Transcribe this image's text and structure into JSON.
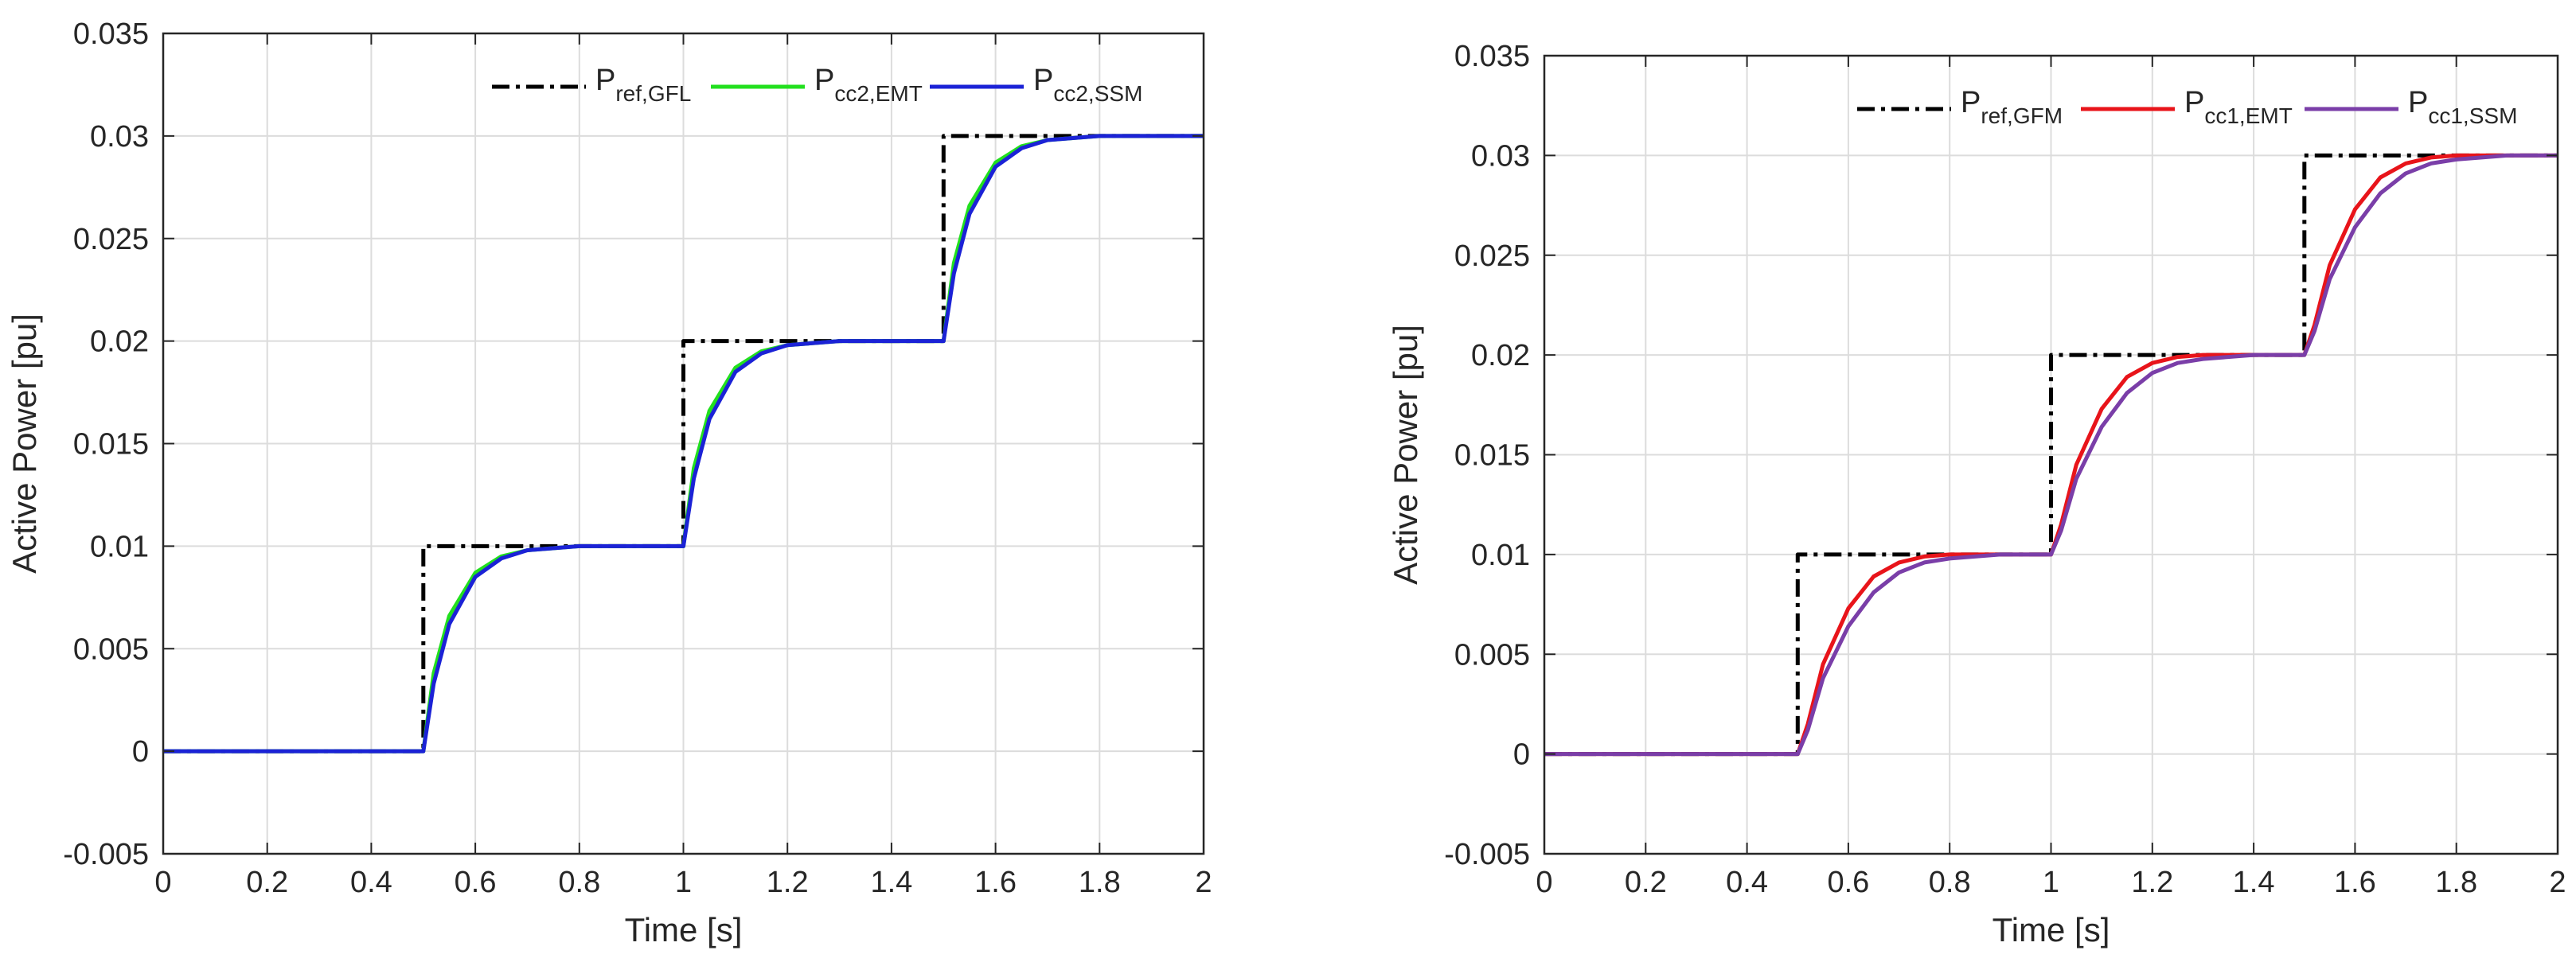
{
  "chart_data": [
    {
      "type": "line",
      "title": "",
      "xlabel": "Time [s]",
      "ylabel": "Active Power [pu]",
      "xlim": [
        0,
        2
      ],
      "ylim": [
        -0.005,
        0.035
      ],
      "xticks": [
        0,
        0.2,
        0.4,
        0.6,
        0.8,
        1,
        1.2,
        1.4,
        1.6,
        1.8,
        2
      ],
      "yticks": [
        -0.005,
        0,
        0.005,
        0.01,
        0.015,
        0.02,
        0.025,
        0.03,
        0.035
      ],
      "xtick_labels": [
        "0",
        "0.2",
        "0.4",
        "0.6",
        "0.8",
        "1",
        "1.2",
        "1.4",
        "1.6",
        "1.8",
        "2"
      ],
      "ytick_labels": [
        "-0.005",
        "0",
        "0.005",
        "0.01",
        "0.015",
        "0.02",
        "0.025",
        "0.03",
        "0.035"
      ],
      "grid": true,
      "legend_position": "top-right",
      "series": [
        {
          "name": "P_ref,GFL",
          "label_main": "P",
          "label_sub": "ref,GFL",
          "color": "#000000",
          "dash": "dash-dot",
          "x": [
            0,
            0.5,
            0.5,
            1.0,
            1.0,
            1.5,
            1.5,
            2.0
          ],
          "y": [
            0,
            0,
            0.01,
            0.01,
            0.02,
            0.02,
            0.03,
            0.03
          ]
        },
        {
          "name": "P_cc2,EMT",
          "label_main": "P",
          "label_sub": "cc2,EMT",
          "color": "#22e01e",
          "dash": "solid",
          "x": [
            0,
            0.5,
            0.52,
            0.55,
            0.6,
            0.65,
            0.7,
            0.8,
            1.0,
            1.02,
            1.05,
            1.1,
            1.15,
            1.2,
            1.3,
            1.5,
            1.52,
            1.55,
            1.6,
            1.65,
            1.7,
            1.8,
            2.0
          ],
          "y": [
            0,
            0,
            0.0038,
            0.0066,
            0.0087,
            0.0095,
            0.0098,
            0.01,
            0.01,
            0.0138,
            0.0166,
            0.0187,
            0.0195,
            0.0198,
            0.02,
            0.02,
            0.0238,
            0.0266,
            0.0287,
            0.0295,
            0.0298,
            0.03,
            0.03
          ]
        },
        {
          "name": "P_cc2,SSM",
          "label_main": "P",
          "label_sub": "cc2,SSM",
          "color": "#1b22d6",
          "dash": "solid",
          "x": [
            0,
            0.5,
            0.52,
            0.55,
            0.6,
            0.65,
            0.7,
            0.8,
            1.0,
            1.02,
            1.05,
            1.1,
            1.15,
            1.2,
            1.3,
            1.5,
            1.52,
            1.55,
            1.6,
            1.65,
            1.7,
            1.8,
            2.0
          ],
          "y": [
            0,
            0,
            0.0033,
            0.0062,
            0.0085,
            0.0094,
            0.0098,
            0.01,
            0.01,
            0.0133,
            0.0162,
            0.0185,
            0.0194,
            0.0198,
            0.02,
            0.02,
            0.0233,
            0.0262,
            0.0285,
            0.0294,
            0.0298,
            0.03,
            0.03
          ]
        }
      ]
    },
    {
      "type": "line",
      "title": "",
      "xlabel": "Time [s]",
      "ylabel": "Active Power [pu]",
      "xlim": [
        0,
        2
      ],
      "ylim": [
        -0.005,
        0.035
      ],
      "xticks": [
        0,
        0.2,
        0.4,
        0.6,
        0.8,
        1,
        1.2,
        1.4,
        1.6,
        1.8,
        2
      ],
      "yticks": [
        -0.005,
        0,
        0.005,
        0.01,
        0.015,
        0.02,
        0.025,
        0.03,
        0.035
      ],
      "xtick_labels": [
        "0",
        "0.2",
        "0.4",
        "0.6",
        "0.8",
        "1",
        "1.2",
        "1.4",
        "1.6",
        "1.8",
        "2"
      ],
      "ytick_labels": [
        "-0.005",
        "0",
        "0.005",
        "0.01",
        "0.015",
        "0.02",
        "0.025",
        "0.03",
        "0.035"
      ],
      "grid": true,
      "legend_position": "top-right",
      "series": [
        {
          "name": "P_ref,GFM",
          "label_main": "P",
          "label_sub": "ref,GFM",
          "color": "#000000",
          "dash": "dash-dot",
          "x": [
            0,
            0.5,
            0.5,
            1.0,
            1.0,
            1.5,
            1.5,
            2.0
          ],
          "y": [
            0,
            0,
            0.01,
            0.01,
            0.02,
            0.02,
            0.03,
            0.03
          ]
        },
        {
          "name": "P_cc1,EMT",
          "label_main": "P",
          "label_sub": "cc1,EMT",
          "color": "#e8141a",
          "dash": "solid",
          "x": [
            0,
            0.5,
            0.52,
            0.55,
            0.6,
            0.65,
            0.7,
            0.75,
            0.8,
            0.9,
            1.0,
            1.02,
            1.05,
            1.1,
            1.15,
            1.2,
            1.25,
            1.3,
            1.4,
            1.5,
            1.52,
            1.55,
            1.6,
            1.65,
            1.7,
            1.75,
            1.8,
            1.9,
            2.0
          ],
          "y": [
            0,
            0,
            0.0015,
            0.0045,
            0.0073,
            0.0089,
            0.0096,
            0.0099,
            0.01,
            0.01,
            0.01,
            0.0115,
            0.0145,
            0.0173,
            0.0189,
            0.0196,
            0.0199,
            0.02,
            0.02,
            0.02,
            0.0215,
            0.0245,
            0.0273,
            0.0289,
            0.0296,
            0.0299,
            0.03,
            0.03,
            0.03
          ]
        },
        {
          "name": "P_cc1,SSM",
          "label_main": "P",
          "label_sub": "cc1,SSM",
          "color": "#7a3ea8",
          "dash": "solid",
          "x": [
            0,
            0.5,
            0.52,
            0.55,
            0.6,
            0.65,
            0.7,
            0.75,
            0.8,
            0.9,
            1.0,
            1.02,
            1.05,
            1.1,
            1.15,
            1.2,
            1.25,
            1.3,
            1.4,
            1.5,
            1.52,
            1.55,
            1.6,
            1.65,
            1.7,
            1.75,
            1.8,
            1.9,
            2.0
          ],
          "y": [
            0,
            0,
            0.0012,
            0.0038,
            0.0064,
            0.0081,
            0.0091,
            0.0096,
            0.0098,
            0.01,
            0.01,
            0.0112,
            0.0138,
            0.0164,
            0.0181,
            0.0191,
            0.0196,
            0.0198,
            0.02,
            0.02,
            0.0212,
            0.0238,
            0.0264,
            0.0281,
            0.0291,
            0.0296,
            0.0298,
            0.03,
            0.03
          ]
        }
      ]
    }
  ]
}
